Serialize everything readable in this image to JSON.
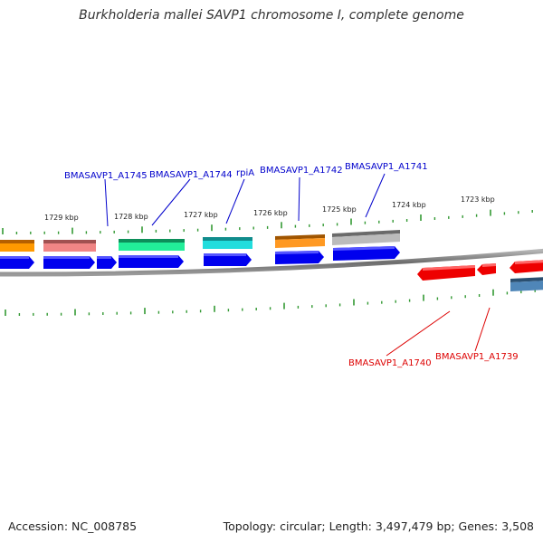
{
  "title": "Burkholderia mallei SAVP1 chromosome I, complete genome",
  "footer": {
    "accession": "Accession: NC_008785",
    "summary": "Topology: circular; Length: 3,497,479 bp; Genes: 3,508"
  },
  "kbp_labels": [
    "1729 kbp",
    "1728 kbp",
    "1727 kbp",
    "1726 kbp",
    "1725 kbp",
    "1724 kbp",
    "1723 kbp"
  ],
  "gene_labels": [
    {
      "id": "bmasavp1-a1745",
      "text": "BMASAVP1_A1745",
      "strand": "forward",
      "color": "#0000cc"
    },
    {
      "id": "bmasavp1-a1744",
      "text": "BMASAVP1_A1744",
      "strand": "forward",
      "color": "#0000cc"
    },
    {
      "id": "rpia",
      "text": "rpiA",
      "strand": "forward",
      "color": "#0000cc"
    },
    {
      "id": "bmasavp1-a1742",
      "text": "BMASAVP1_A1742",
      "strand": "forward",
      "color": "#0000cc"
    },
    {
      "id": "bmasavp1-a1741",
      "text": "BMASAVP1_A1741",
      "strand": "forward",
      "color": "#0000cc"
    },
    {
      "id": "bmasavp1-a1740",
      "text": "BMASAVP1_A1740",
      "strand": "reverse",
      "color": "#dd0000"
    },
    {
      "id": "bmasavp1-a1739",
      "text": "BMASAVP1_A1739",
      "strand": "reverse",
      "color": "#dd0000"
    }
  ],
  "colors": {
    "forward_cds": "#0000ee",
    "reverse_cds": "#ee0000",
    "tick": "#339933",
    "backbone": "#777777"
  }
}
